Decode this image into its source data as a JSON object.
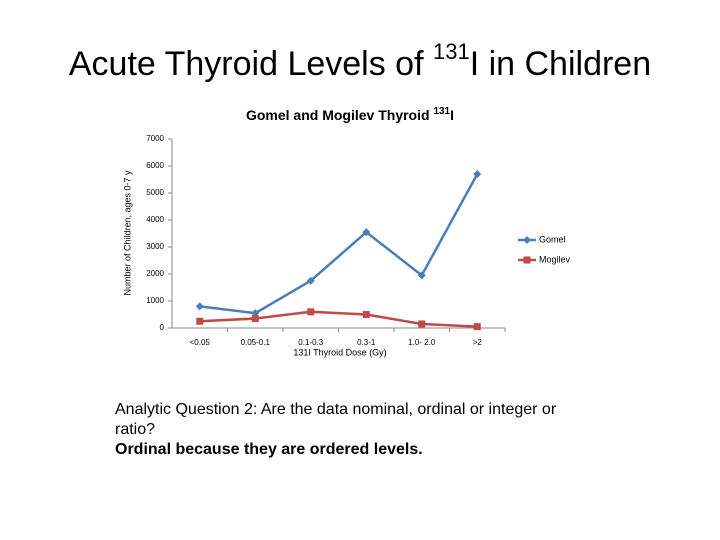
{
  "slide_title": [
    "Acute Thyroid Levels of ",
    "131",
    "I in Children"
  ],
  "question": "Analytic Question 2:  Are the data nominal, ordinal or integer or ratio?",
  "answer": "Ordinal because they are ordered levels.",
  "chart_data": {
    "type": "line",
    "title": [
      "Gomel and Mogilev Thyroid ",
      "131",
      "I"
    ],
    "x_label": "131I Thyroid Dose (Gy)",
    "y_label": "Number of Children, ages 0-7 y",
    "categories": [
      "<0.05",
      "0.05-0.1",
      "0.1-0.3",
      "0.3-1",
      "1.0- 2.0",
      ">2"
    ],
    "series": [
      {
        "name": "Gomel",
        "color": "#4a7ebb",
        "marker": "diamond",
        "values": [
          800,
          550,
          1750,
          3550,
          1950,
          5700
        ]
      },
      {
        "name": "Mogilev",
        "color": "#be4b48",
        "marker": "square",
        "values": [
          250,
          350,
          600,
          500,
          150,
          50
        ]
      }
    ],
    "ylim": [
      0,
      7000
    ],
    "yticks": [
      0,
      1000,
      2000,
      3000,
      4000,
      5000,
      6000,
      7000
    ],
    "grid": false,
    "legend": "right"
  }
}
